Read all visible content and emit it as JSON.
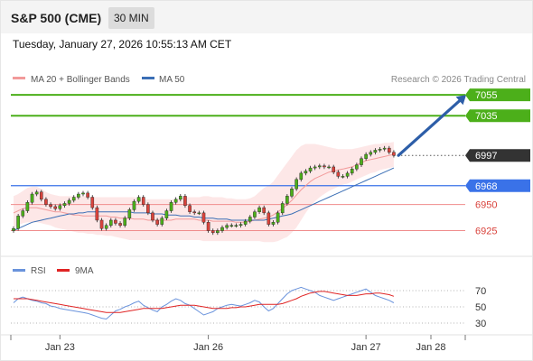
{
  "header": {
    "symbol": "S&P 500 (CME)",
    "timeframe": "30 MIN"
  },
  "datetime": "Tuesday, January 27, 2026 10:55:13 AM CET",
  "legend": {
    "ma20_bb": "MA 20 + Bollinger Bands",
    "ma50": "MA 50"
  },
  "credit": "Research © 2026 Trading Central",
  "colors": {
    "resistance": "#4caf1a",
    "support_blue": "#3a72e8",
    "support_red": "#f08c8c",
    "candle_up": "#4caf1a",
    "candle_down": "#d9433c",
    "ma50": "#3b6fb5",
    "bb_fill": "#fde3e3",
    "ma20": "#f29a9a",
    "arrow": "#2d5ea8",
    "rsi": "#6a93dc",
    "rsi_ma": "#e02424",
    "last_price_bg": "#333333"
  },
  "chart_data": {
    "type": "candlestick",
    "ylim": [
      6903,
      7062
    ],
    "x_ticks": [
      {
        "label": "Jan 23",
        "index": 10
      },
      {
        "label": "Jan 26",
        "index": 42
      },
      {
        "label": "Jan 27",
        "index": 76
      },
      {
        "label": "Jan 28",
        "index": 90
      }
    ],
    "levels": [
      {
        "value": 7055,
        "label": "7055",
        "kind": "resistance"
      },
      {
        "value": 7035,
        "label": "7035",
        "kind": "resistance"
      },
      {
        "value": 6997,
        "label": "6997",
        "kind": "last"
      },
      {
        "value": 6968,
        "label": "6968",
        "kind": "pivot"
      },
      {
        "value": 6950,
        "label": "6950",
        "kind": "support"
      },
      {
        "value": 6925,
        "label": "6925",
        "kind": "support"
      }
    ],
    "close": [
      6927,
      6939,
      6944,
      6952,
      6960,
      6962,
      6955,
      6950,
      6948,
      6946,
      6949,
      6951,
      6954,
      6957,
      6960,
      6961,
      6957,
      6947,
      6935,
      6927,
      6930,
      6935,
      6932,
      6930,
      6937,
      6945,
      6953,
      6957,
      6950,
      6942,
      6935,
      6931,
      6937,
      6944,
      6952,
      6955,
      6958,
      6949,
      6943,
      6942,
      6942,
      6933,
      6925,
      6923,
      6925,
      6928,
      6930,
      6930,
      6930,
      6931,
      6934,
      6938,
      6943,
      6947,
      6942,
      6931,
      6933,
      6942,
      6951,
      6958,
      6965,
      6974,
      6980,
      6982,
      6985,
      6986,
      6987,
      6986,
      6986,
      6981,
      6977,
      6977,
      6980,
      6984,
      6988,
      6994,
      6998,
      7000,
      7002,
      7003,
      7004,
      7000,
      6997
    ],
    "ma20": [
      6942,
      6944,
      6946,
      6947,
      6947,
      6947,
      6946,
      6945,
      6944,
      6943,
      6943,
      6942,
      6941,
      6940,
      6940,
      6939,
      6939,
      6939,
      6939,
      6939,
      6939,
      6938,
      6938,
      6937,
      6937,
      6937,
      6936,
      6936,
      6936,
      6935,
      6935,
      6935,
      6935,
      6935,
      6935,
      6936,
      6936,
      6936,
      6936,
      6936,
      6935,
      6935,
      6935,
      6934,
      6934,
      6934,
      6934,
      6934,
      6933,
      6933,
      6933,
      6934,
      6935,
      6936,
      6937,
      6938,
      6940,
      6943,
      6946,
      6950,
      6954,
      6959,
      6964,
      6968,
      6972,
      6975,
      6977,
      6979,
      6981,
      6982,
      6983,
      6984,
      6985,
      6986,
      6988,
      6990,
      6992,
      6993,
      6994,
      6995,
      6996,
      6997,
      6998
    ],
    "bb_upper": [
      6958,
      6960,
      6963,
      6966,
      6967,
      6967,
      6965,
      6962,
      6960,
      6959,
      6958,
      6958,
      6958,
      6958,
      6958,
      6958,
      6958,
      6957,
      6957,
      6957,
      6957,
      6957,
      6957,
      6957,
      6957,
      6957,
      6957,
      6956,
      6955,
      6955,
      6955,
      6955,
      6955,
      6955,
      6955,
      6955,
      6956,
      6957,
      6957,
      6957,
      6957,
      6958,
      6958,
      6957,
      6957,
      6957,
      6956,
      6956,
      6955,
      6955,
      6955,
      6956,
      6958,
      6962,
      6966,
      6968,
      6972,
      6978,
      6984,
      6990,
      6996,
      7002,
      7006,
      7008,
      7008,
      7008,
      7007,
      7006,
      7005,
      7004,
      7003,
      7003,
      7003,
      7003,
      7004,
      7005,
      7006,
      7007,
      7008,
      7008,
      7009,
      7009,
      7010
    ],
    "bb_lower": [
      6928,
      6930,
      6932,
      6933,
      6933,
      6933,
      6932,
      6931,
      6930,
      6928,
      6927,
      6926,
      6925,
      6924,
      6923,
      6923,
      6922,
      6922,
      6921,
      6921,
      6920,
      6920,
      6919,
      6918,
      6917,
      6916,
      6916,
      6916,
      6916,
      6916,
      6916,
      6916,
      6916,
      6916,
      6916,
      6916,
      6916,
      6916,
      6916,
      6916,
      6916,
      6915,
      6915,
      6915,
      6915,
      6915,
      6915,
      6915,
      6915,
      6915,
      6915,
      6915,
      6915,
      6915,
      6914,
      6914,
      6914,
      6915,
      6917,
      6919,
      6923,
      6928,
      6935,
      6942,
      6948,
      6953,
      6957,
      6960,
      6963,
      6965,
      6967,
      6969,
      6970,
      6972,
      6974,
      6976,
      6978,
      6980,
      6981,
      6983,
      6984,
      6985,
      6986
    ],
    "ma50": [
      6925,
      6927,
      6929,
      6931,
      6933,
      6934,
      6935,
      6936,
      6937,
      6938,
      6939,
      6940,
      6941,
      6941,
      6942,
      6942,
      6943,
      6943,
      6943,
      6943,
      6943,
      6943,
      6943,
      6943,
      6943,
      6943,
      6942,
      6942,
      6942,
      6942,
      6941,
      6941,
      6941,
      6940,
      6940,
      6940,
      6939,
      6939,
      6939,
      6938,
      6938,
      6937,
      6937,
      6937,
      6936,
      6936,
      6936,
      6935,
      6935,
      6935,
      6935,
      6935,
      6935,
      6935,
      6935,
      6936,
      6937,
      6938,
      6939,
      6940,
      6941,
      6943,
      6945,
      6947,
      6949,
      6951,
      6953,
      6955,
      6957,
      6959,
      6961,
      6963,
      6965,
      6967,
      6969,
      6971,
      6973,
      6975,
      6977,
      6979,
      6981,
      6983,
      6985
    ],
    "arrow": {
      "from": {
        "index": 83,
        "value": 6997
      },
      "to": {
        "index": 90,
        "value": 7055
      }
    },
    "rsi": {
      "legend": "RSI",
      "ma_legend": "9MA",
      "ylim": [
        20,
        80
      ],
      "ticks": [
        70,
        50,
        30
      ],
      "values": [
        55,
        60,
        62,
        60,
        58,
        57,
        55,
        54,
        51,
        50,
        48,
        47,
        46,
        45,
        44,
        43,
        42,
        40,
        38,
        36,
        35,
        40,
        45,
        47,
        50,
        52,
        55,
        57,
        52,
        49,
        46,
        44,
        50,
        53,
        57,
        60,
        58,
        54,
        52,
        48,
        44,
        40,
        42,
        44,
        48,
        50,
        52,
        53,
        52,
        51,
        53,
        55,
        58,
        56,
        50,
        45,
        48,
        54,
        60,
        66,
        70,
        72,
        74,
        72,
        70,
        68,
        64,
        62,
        60,
        58,
        60,
        62,
        64,
        66,
        68,
        70,
        72,
        68,
        64,
        62,
        60,
        58,
        55
      ],
      "ma": [
        60,
        60,
        60,
        60,
        59,
        58,
        57,
        56,
        55,
        54,
        53,
        52,
        51,
        50,
        49,
        48,
        47,
        46,
        45,
        44,
        43,
        43,
        43,
        43,
        44,
        45,
        46,
        47,
        48,
        48,
        48,
        48,
        48,
        49,
        50,
        51,
        52,
        52,
        52,
        52,
        51,
        50,
        49,
        48,
        48,
        48,
        48,
        49,
        49,
        50,
        50,
        51,
        52,
        53,
        53,
        53,
        53,
        53,
        54,
        56,
        58,
        60,
        63,
        65,
        67,
        68,
        69,
        69,
        68,
        67,
        66,
        65,
        64,
        64,
        64,
        65,
        66,
        66,
        67,
        67,
        66,
        65,
        63
      ]
    }
  }
}
